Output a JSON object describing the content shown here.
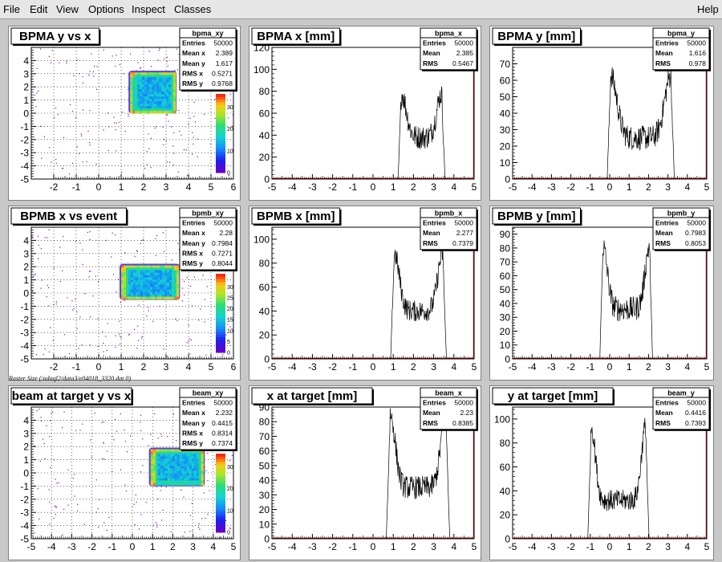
{
  "menu": {
    "file": "File",
    "edit": "Edit",
    "view": "View",
    "options": "Options",
    "inspect": "Inspect",
    "classes": "Classes",
    "help": "Help"
  },
  "caption": "Raster Size (/adaql2/data3/e04018_3320.dat.0)",
  "colors": {
    "hist_line": "#000000",
    "axis_red": "#cc0000",
    "frame": "#000000",
    "pad_bg": "#ffffff",
    "canvas_bg": "#c8c8c8"
  },
  "chart_data": [
    {
      "id": "bpma_xy",
      "type": "heatmap",
      "title": "BPMA y vs x",
      "xlim": [
        -3,
        6
      ],
      "ylim": [
        -5,
        5
      ],
      "xticks": [
        -2,
        -1,
        0,
        1,
        2,
        3,
        4,
        5,
        6
      ],
      "yticks": [
        -5,
        -4,
        -3,
        -2,
        -1,
        0,
        1,
        2,
        3,
        4
      ],
      "zticks": [
        0,
        10,
        20,
        30
      ],
      "zmax": 36,
      "box": {
        "x": [
          1.4,
          3.4
        ],
        "y": [
          0.1,
          3.1
        ]
      },
      "stats": {
        "name": "bpma_xy",
        "rows": [
          [
            "Entries",
            "50000"
          ],
          [
            "Mean x",
            "2.389"
          ],
          [
            "Mean y",
            "1.617"
          ],
          [
            "RMS x",
            "0.5271"
          ],
          [
            "RMS y",
            "0.9768"
          ]
        ]
      }
    },
    {
      "id": "bpma_x",
      "type": "line",
      "title": "BPMA x [mm]",
      "xlim": [
        -5,
        5
      ],
      "ylim": [
        0,
        120
      ],
      "xticks": [
        -5,
        -4,
        -3,
        -2,
        -1,
        0,
        1,
        2,
        3,
        4,
        5
      ],
      "yticks": [
        0,
        20,
        40,
        60,
        80,
        100,
        120
      ],
      "shape": {
        "lo": 1.4,
        "hi": 3.4,
        "edge": 0.16,
        "base": 38,
        "hump": 40,
        "humpw": 0.35,
        "noise": 22
      },
      "stats": {
        "name": "bpma_x",
        "rows": [
          [
            "Entries",
            "50000"
          ],
          [
            "Mean",
            "2.385"
          ],
          [
            "RMS",
            "0.5467"
          ]
        ]
      }
    },
    {
      "id": "bpma_y",
      "type": "line",
      "title": "BPMA y [mm]",
      "xlim": [
        -5,
        5
      ],
      "ylim": [
        0,
        80
      ],
      "xticks": [
        -5,
        -4,
        -3,
        -2,
        -1,
        0,
        1,
        2,
        3,
        4,
        5
      ],
      "yticks": [
        0,
        10,
        20,
        30,
        40,
        50,
        60,
        70
      ],
      "shape": {
        "lo": 0.05,
        "hi": 3.15,
        "edge": 0.18,
        "base": 25,
        "hump": 38,
        "humpw": 0.45,
        "noise": 15
      },
      "stats": {
        "name": "bpma_y",
        "rows": [
          [
            "Entries",
            "50000"
          ],
          [
            "Mean",
            "1.616"
          ],
          [
            "RMS",
            "0.978"
          ]
        ]
      }
    },
    {
      "id": "bpmb_xy",
      "type": "heatmap",
      "title": "BPMB x vs event",
      "xlim": [
        -3,
        6
      ],
      "ylim": [
        -5,
        5
      ],
      "xticks": [
        -2,
        -1,
        0,
        1,
        2,
        3,
        4,
        5,
        6
      ],
      "yticks": [
        -5,
        -4,
        -3,
        -2,
        -1,
        0,
        1,
        2,
        3,
        4
      ],
      "zticks": [
        0,
        5,
        10,
        15,
        20,
        25,
        30
      ],
      "zmax": 36,
      "box": {
        "x": [
          1.0,
          3.55
        ],
        "y": [
          -0.4,
          2.1
        ]
      },
      "stats": {
        "name": "bpmb_xy",
        "rows": [
          [
            "Entries",
            "50000"
          ],
          [
            "Mean x",
            "2.28"
          ],
          [
            "Mean y",
            "0.7984"
          ],
          [
            "RMS x",
            "0.7271"
          ],
          [
            "RMS y",
            "0.8044"
          ]
        ]
      }
    },
    {
      "id": "bpmb_x",
      "type": "line",
      "title": "BPMB x [mm]",
      "xlim": [
        -5,
        5
      ],
      "ylim": [
        0,
        110
      ],
      "xticks": [
        -5,
        -4,
        -3,
        -2,
        -1,
        0,
        1,
        2,
        3,
        4,
        5
      ],
      "yticks": [
        0,
        20,
        40,
        60,
        80,
        100
      ],
      "shape": {
        "lo": 1.05,
        "hi": 3.45,
        "edge": 0.18,
        "base": 40,
        "hump": 48,
        "humpw": 0.35,
        "noise": 18
      },
      "stats": {
        "name": "bpmb_x",
        "rows": [
          [
            "Entries",
            "50000"
          ],
          [
            "Mean",
            "2.277"
          ],
          [
            "RMS",
            "0.7379"
          ]
        ]
      }
    },
    {
      "id": "bpmb_y",
      "type": "line",
      "title": "BPMB y [mm]",
      "xlim": [
        -5,
        5
      ],
      "ylim": [
        0,
        95
      ],
      "xticks": [
        -5,
        -4,
        -3,
        -2,
        -1,
        0,
        1,
        2,
        3,
        4,
        5
      ],
      "yticks": [
        0,
        10,
        20,
        30,
        40,
        50,
        60,
        70,
        80,
        90
      ],
      "shape": {
        "lo": -0.35,
        "hi": 2.05,
        "edge": 0.16,
        "base": 36,
        "hump": 45,
        "humpw": 0.32,
        "noise": 18
      },
      "stats": {
        "name": "bpmb_y",
        "rows": [
          [
            "Entries",
            "50000"
          ],
          [
            "Mean",
            "0.7983"
          ],
          [
            "RMS",
            "0.8053"
          ]
        ]
      }
    },
    {
      "id": "beam_xy",
      "type": "heatmap",
      "title": "beam at target y vs x",
      "xlim": [
        -5,
        5
      ],
      "ylim": [
        -5,
        5
      ],
      "xticks": [
        -5,
        -4,
        -3,
        -2,
        -1,
        0,
        1,
        2,
        3,
        4,
        5
      ],
      "yticks": [
        -5,
        -4,
        -3,
        -2,
        -1,
        0,
        1,
        2,
        3,
        4
      ],
      "zticks": [
        0,
        10,
        20,
        30
      ],
      "zmax": 36,
      "box": {
        "x": [
          0.9,
          3.5
        ],
        "y": [
          -0.9,
          1.8
        ]
      },
      "stats": {
        "name": "beam_xy",
        "rows": [
          [
            "Entries",
            "50000"
          ],
          [
            "Mean x",
            "2.232"
          ],
          [
            "Mean y",
            "0.4415"
          ],
          [
            "RMS x",
            "0.8314"
          ],
          [
            "RMS y",
            "0.7374"
          ]
        ]
      }
    },
    {
      "id": "beam_x",
      "type": "line",
      "title": "x at target [mm]",
      "xlim": [
        -5,
        5
      ],
      "ylim": [
        0,
        90
      ],
      "xticks": [
        -5,
        -4,
        -3,
        -2,
        -1,
        0,
        1,
        2,
        3,
        4,
        5
      ],
      "yticks": [
        0,
        10,
        20,
        30,
        40,
        50,
        60,
        70,
        80,
        90
      ],
      "shape": {
        "lo": 0.85,
        "hi": 3.6,
        "edge": 0.2,
        "base": 35,
        "hump": 50,
        "humpw": 0.35,
        "noise": 16
      },
      "stats": {
        "name": "beam_x",
        "rows": [
          [
            "Entries",
            "50000"
          ],
          [
            "Mean",
            "2.23"
          ],
          [
            "RMS",
            "0.8385"
          ]
        ]
      }
    },
    {
      "id": "beam_y",
      "type": "line",
      "title": "y at target [mm]",
      "xlim": [
        -5,
        5
      ],
      "ylim": [
        0,
        110
      ],
      "xticks": [
        -5,
        -4,
        -3,
        -2,
        -1,
        0,
        1,
        2,
        3,
        4,
        5
      ],
      "yticks": [
        0,
        20,
        40,
        60,
        80,
        100
      ],
      "shape": {
        "lo": -0.95,
        "hi": 1.85,
        "edge": 0.18,
        "base": 32,
        "hump": 62,
        "humpw": 0.3,
        "noise": 18
      },
      "stats": {
        "name": "beam_y",
        "rows": [
          [
            "Entries",
            "50000"
          ],
          [
            "Mean",
            "0.4416"
          ],
          [
            "RMS",
            "0.7393"
          ]
        ]
      }
    }
  ]
}
